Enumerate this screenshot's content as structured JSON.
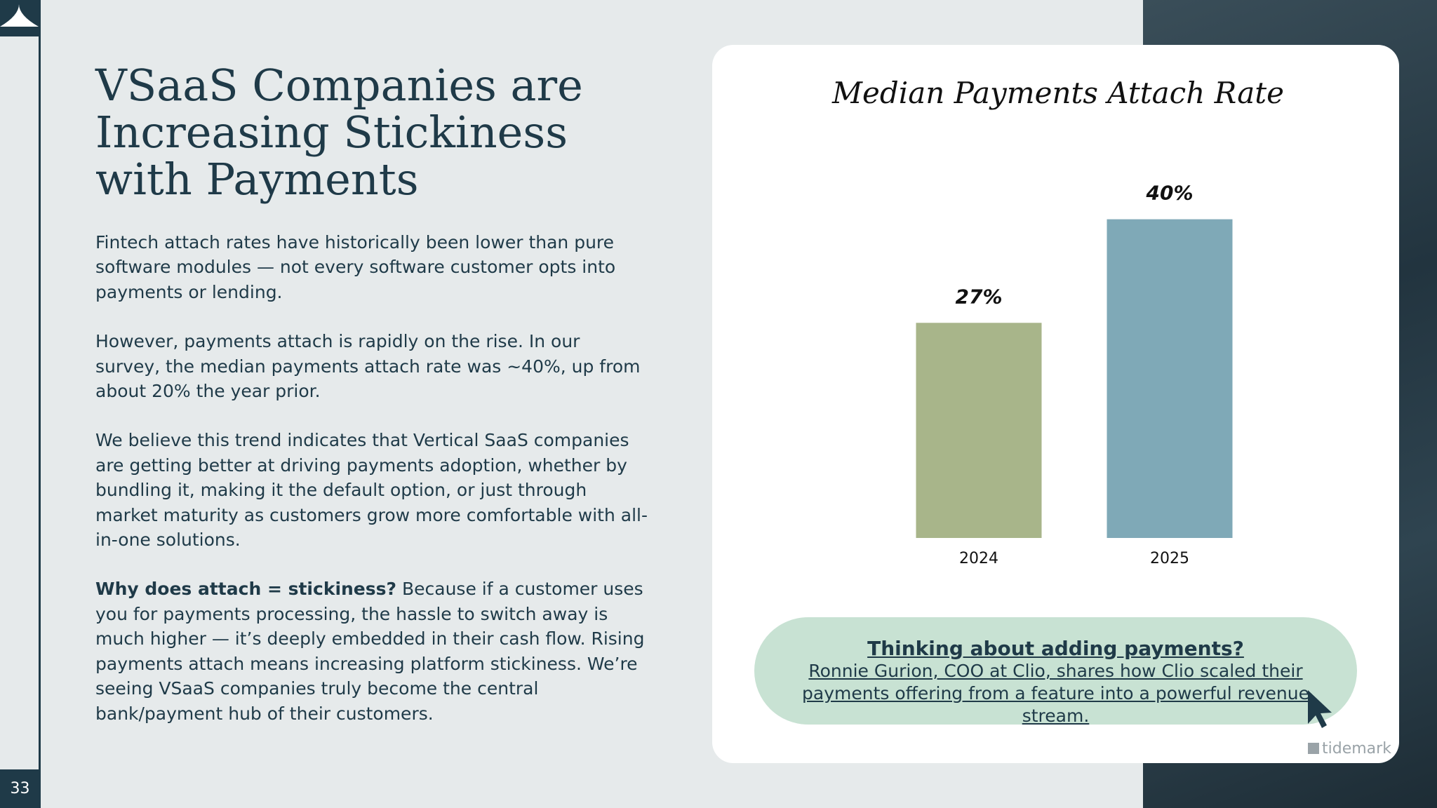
{
  "slide": {
    "title_lines": [
      "VSaaS Companies are",
      "Increasing Stickiness",
      "with Payments"
    ],
    "paragraphs": [
      "Fintech attach rates have historically been lower than pure software modules — not every software customer opts into payments or lending.",
      "However, payments attach is rapidly on the rise. In our survey, the median payments attach rate was ~40%, up from about 20% the year prior.",
      "We believe this trend indicates that Vertical SaaS companies are getting better at driving payments adoption, whether by bundling it, making it the default option, or just through market maturity as customers grow more comfortable with all-in-one solutions."
    ],
    "closing": {
      "bold": "Why does attach = stickiness?",
      "text": " Because if a customer uses you for payments processing, the hassle to switch away is much higher — it’s deeply embedded in their cash flow. Rising payments attach means increasing platform stickiness. We’re seeing VSaaS companies truly become the central bank/payment hub of their customers."
    },
    "callout": {
      "heading": "Thinking about adding payments?",
      "text": "Ronnie Gurion, COO at Clio, shares how Clio scaled their payments offering from a feature into a powerful revenue stream."
    },
    "logo": "tidemark",
    "page_number": "33"
  },
  "chart_data": {
    "type": "bar",
    "title": "Median Payments Attach Rate",
    "categories": [
      "2024",
      "2025"
    ],
    "values": [
      27,
      40
    ],
    "value_labels": [
      "27%",
      "40%"
    ],
    "colors": [
      "#a8b58a",
      "#7fa9b7"
    ]
  }
}
